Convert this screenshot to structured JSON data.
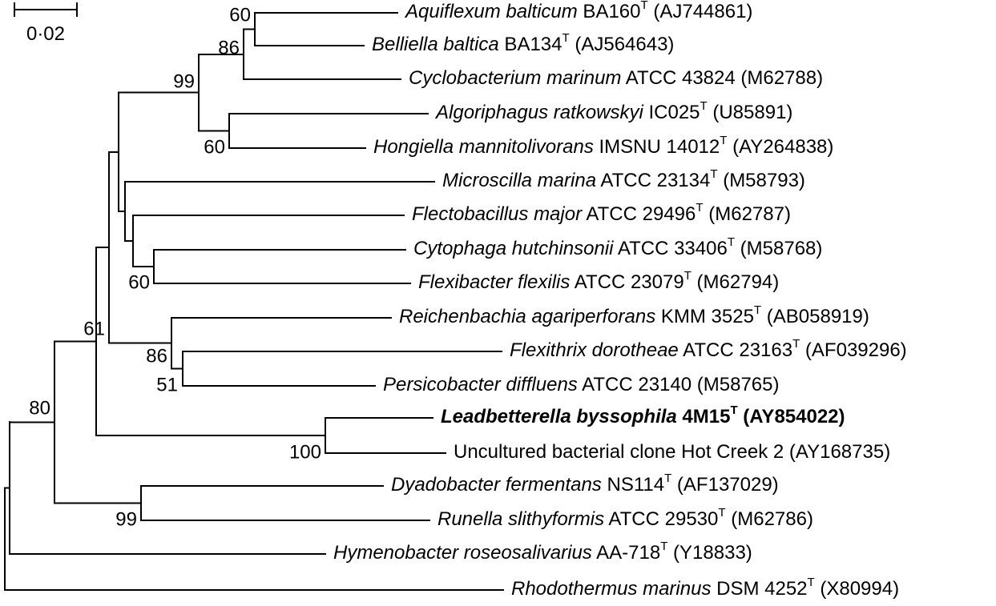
{
  "scale_bar": {
    "label": "0·02"
  },
  "taxa": [
    {
      "id": "aqu",
      "parts": [
        {
          "t": "Aquiflexum balticum",
          "it": true
        },
        {
          "t": " BA160"
        },
        {
          "t": "T",
          "sup": true
        },
        {
          "t": " (AJ744861)"
        }
      ]
    },
    {
      "id": "bel",
      "parts": [
        {
          "t": "Belliella baltica",
          "it": true
        },
        {
          "t": " BA134"
        },
        {
          "t": "T",
          "sup": true
        },
        {
          "t": " (AJ564643)"
        }
      ]
    },
    {
      "id": "cyc",
      "parts": [
        {
          "t": "Cyclobacterium marinum",
          "it": true
        },
        {
          "t": " ATCC 43824 (M62788)"
        }
      ]
    },
    {
      "id": "alg",
      "parts": [
        {
          "t": "Algoriphagus ratkowskyi",
          "it": true
        },
        {
          "t": " IC025"
        },
        {
          "t": "T",
          "sup": true
        },
        {
          "t": " (U85891)"
        }
      ]
    },
    {
      "id": "hon",
      "parts": [
        {
          "t": "Hongiella mannitolivorans",
          "it": true
        },
        {
          "t": " IMSNU 14012"
        },
        {
          "t": "T",
          "sup": true
        },
        {
          "t": " (AY264838)"
        }
      ]
    },
    {
      "id": "mic",
      "parts": [
        {
          "t": "Microscilla marina",
          "it": true
        },
        {
          "t": " ATCC 23134"
        },
        {
          "t": "T",
          "sup": true
        },
        {
          "t": " (M58793)"
        }
      ]
    },
    {
      "id": "fle",
      "parts": [
        {
          "t": "Flectobacillus major",
          "it": true
        },
        {
          "t": " ATCC 29496"
        },
        {
          "t": "T",
          "sup": true
        },
        {
          "t": " (M62787)"
        }
      ]
    },
    {
      "id": "cyt",
      "parts": [
        {
          "t": "Cytophaga hutchinsonii",
          "it": true
        },
        {
          "t": " ATCC 33406"
        },
        {
          "t": "T",
          "sup": true
        },
        {
          "t": " (M58768)"
        }
      ]
    },
    {
      "id": "flx",
      "parts": [
        {
          "t": "Flexibacter flexilis",
          "it": true
        },
        {
          "t": " ATCC 23079"
        },
        {
          "t": "T",
          "sup": true
        },
        {
          "t": " (M62794)"
        }
      ]
    },
    {
      "id": "rei",
      "parts": [
        {
          "t": "Reichenbachia agariperforans",
          "it": true
        },
        {
          "t": " KMM 3525"
        },
        {
          "t": "T",
          "sup": true
        },
        {
          "t": " (AB058919)"
        }
      ]
    },
    {
      "id": "fth",
      "parts": [
        {
          "t": "Flexithrix dorotheae",
          "it": true
        },
        {
          "t": " ATCC 23163"
        },
        {
          "t": "T",
          "sup": true
        },
        {
          "t": " (AF039296)"
        }
      ]
    },
    {
      "id": "per",
      "parts": [
        {
          "t": "Persicobacter diffluens",
          "it": true
        },
        {
          "t": " ATCC 23140 (M58765)"
        }
      ]
    },
    {
      "id": "lea",
      "bold": true,
      "parts": [
        {
          "t": "Leadbetterella byssophila",
          "it": true
        },
        {
          "t": " 4M15"
        },
        {
          "t": "T",
          "sup": true
        },
        {
          "t": " (AY854022)"
        }
      ]
    },
    {
      "id": "unc",
      "parts": [
        {
          "t": "Uncultured bacterial clone Hot Creek 2 (AY168735)"
        }
      ]
    },
    {
      "id": "dya",
      "parts": [
        {
          "t": "Dyadobacter fermentans",
          "it": true
        },
        {
          "t": " NS114"
        },
        {
          "t": "T",
          "sup": true
        },
        {
          "t": " (AF137029)"
        }
      ]
    },
    {
      "id": "run",
      "parts": [
        {
          "t": "Runella slithyformis",
          "it": true
        },
        {
          "t": " ATCC 29530"
        },
        {
          "t": "T",
          "sup": true
        },
        {
          "t": " (M62786)"
        }
      ]
    },
    {
      "id": "hym",
      "parts": [
        {
          "t": "Hymenobacter roseosalivarius",
          "it": true
        },
        {
          "t": " AA-718"
        },
        {
          "t": "T",
          "sup": true
        },
        {
          "t": " (Y18833)"
        }
      ]
    },
    {
      "id": "rho",
      "parts": [
        {
          "t": "Rhodothermus marinus",
          "it": true
        },
        {
          "t": " DSM 4252"
        },
        {
          "t": "T",
          "sup": true
        },
        {
          "t": " (X80994)"
        }
      ]
    }
  ],
  "bootstrap": [
    {
      "node": "aqu_bel",
      "value": "60"
    },
    {
      "node": "aqu_bel_cyc",
      "value": "86"
    },
    {
      "node": "cyclo_group",
      "value": "99"
    },
    {
      "node": "alg_hon",
      "value": "60"
    },
    {
      "node": "cyt_flx",
      "value": "60"
    },
    {
      "node": "rei_group",
      "value": "86"
    },
    {
      "node": "fth_per",
      "value": "51"
    },
    {
      "node": "lea_unc",
      "value": "100"
    },
    {
      "node": "main_clade",
      "value": "61"
    },
    {
      "node": "ingroup",
      "value": "80"
    },
    {
      "node": "dya_run",
      "value": "99"
    }
  ]
}
